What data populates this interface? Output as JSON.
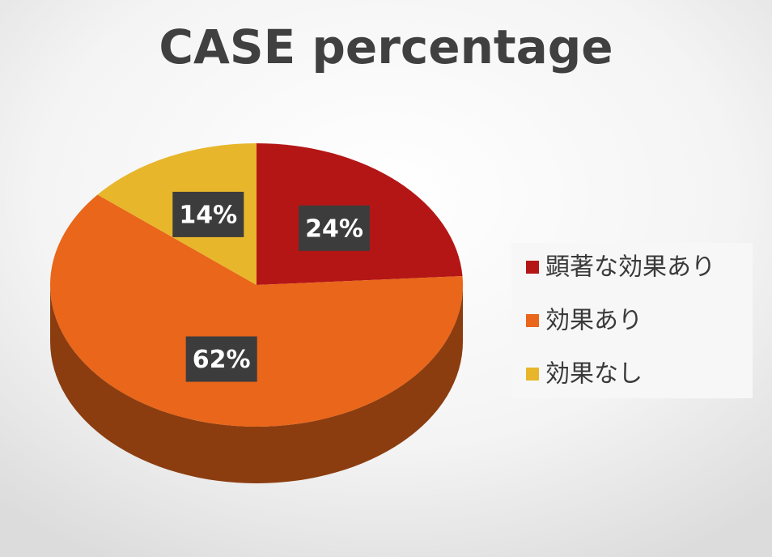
{
  "chart_data": {
    "type": "pie",
    "title": "CASE percentage",
    "categories": [
      "顕著な効果あり",
      "効果あり",
      "効果なし"
    ],
    "values": [
      24,
      62,
      14
    ],
    "value_labels": [
      "24%",
      "62%",
      "14%"
    ],
    "colors": [
      "#b41616",
      "#e9661a",
      "#e7b62b"
    ],
    "legend": "right"
  }
}
